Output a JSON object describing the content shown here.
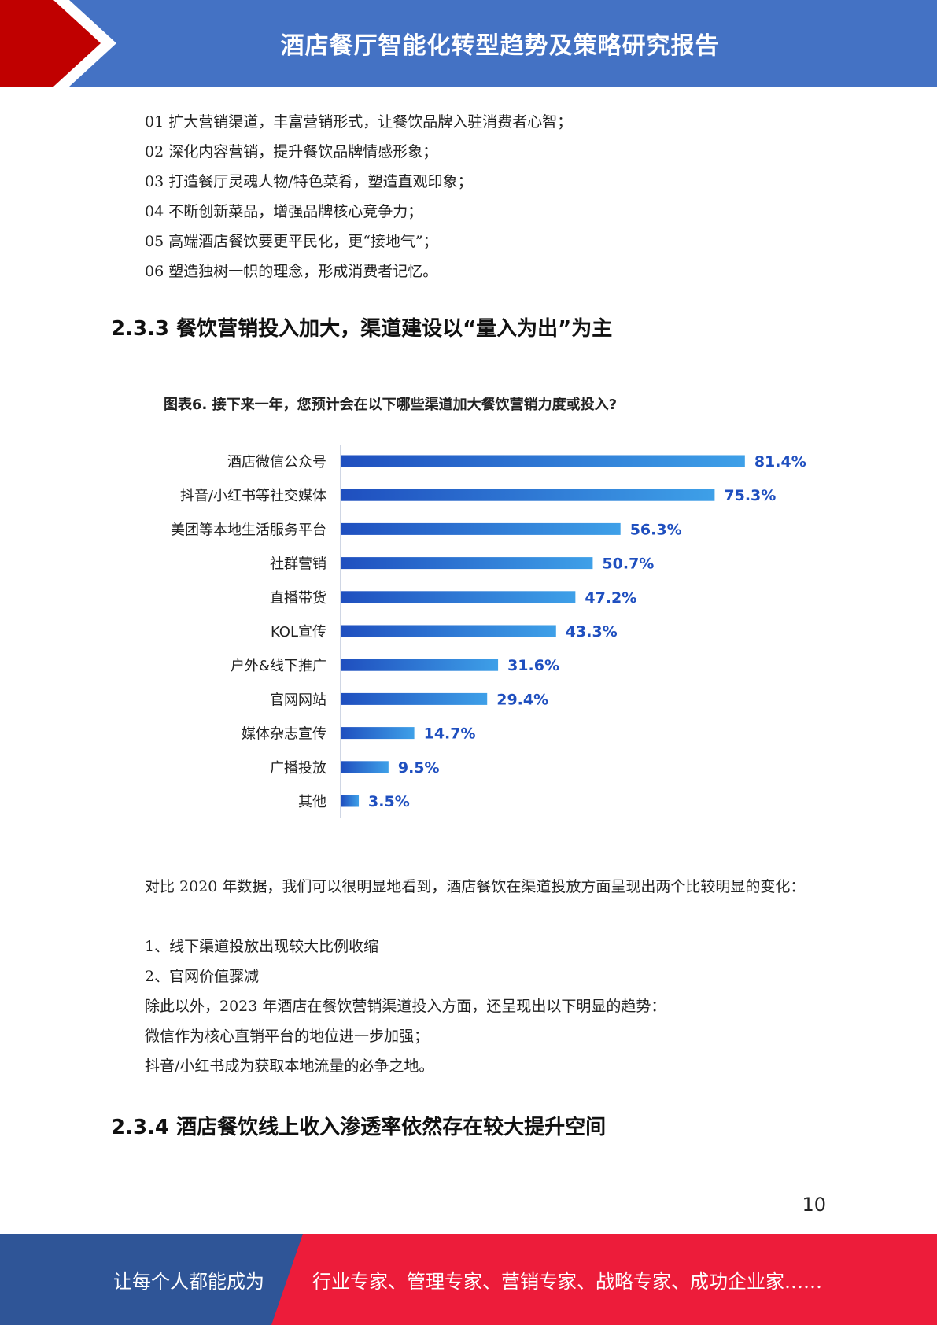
{
  "header": {
    "title": "酒店餐厅智能化转型趋势及策略研究报告",
    "colors": {
      "blue": "#4472c4",
      "red": "#c00000"
    }
  },
  "list_items": [
    "01 扩大营销渠道，丰富营销形式，让餐饮品牌入驻消费者心智；",
    "02 深化内容营销，提升餐饮品牌情感形象；",
    "03 打造餐厅灵魂人物/特色菜肴，塑造直观印象；",
    "04 不断创新菜品，增强品牌核心竞争力；",
    "05 高端酒店餐饮要更平民化，更“接地气”；",
    "06 塑造独树一帜的理念，形成消费者记忆。"
  ],
  "section_233": {
    "heading": "2.3.3 餐饮营销投入加大，渠道建设以“量入为出”为主"
  },
  "chart_data": {
    "type": "bar",
    "orientation": "horizontal",
    "title": "图表6. 接下来一年，您预计会在以下哪些渠道加大餐饮营销力度或投入?",
    "categories": [
      "酒店微信公众号",
      "抖音/小红书等社交媒体",
      "美团等本地生活服务平台",
      "社群营销",
      "直播带货",
      "KOL宣传",
      "户外&线下推广",
      "官网网站",
      "媒体杂志宣传",
      "广播投放",
      "其他"
    ],
    "values": [
      81.4,
      75.3,
      56.3,
      50.7,
      47.2,
      43.3,
      31.6,
      29.4,
      14.7,
      9.5,
      3.5
    ],
    "value_labels": [
      "81.4%",
      "75.3%",
      "56.3%",
      "50.7%",
      "47.2%",
      "43.3%",
      "31.6%",
      "29.4%",
      "14.7%",
      "9.5%",
      "3.5%"
    ],
    "unit": "%",
    "xlim": [
      0,
      100
    ],
    "colors": {
      "bar_start": "#1f4fbf",
      "bar_end": "#3ea0e8",
      "label": "#1f4fbf"
    }
  },
  "body": {
    "para1": "对比 2020 年数据，我们可以很明显地看到，酒店餐饮在渠道投放方面呈现出两个比较明显的变化：",
    "lines": [
      "1、线下渠道投放出现较大比例收缩",
      "2、官网价值骤减",
      "除此以外，2023 年酒店在餐饮营销渠道投入方面，还呈现出以下明显的趋势：",
      "微信作为核心直销平台的地位进一步加强；",
      "抖音/小红书成为获取本地流量的必争之地。"
    ]
  },
  "section_234": {
    "heading": "2.3.4 酒店餐饮线上收入渗透率依然存在较大提升空间"
  },
  "page_number": "10",
  "footer": {
    "left_text": "让每个人都能成为",
    "right_text": "行业专家、管理专家、营销专家、战略专家、成功企业家……",
    "colors": {
      "blue": "#2f5597",
      "red": "#ed1c3a"
    }
  }
}
